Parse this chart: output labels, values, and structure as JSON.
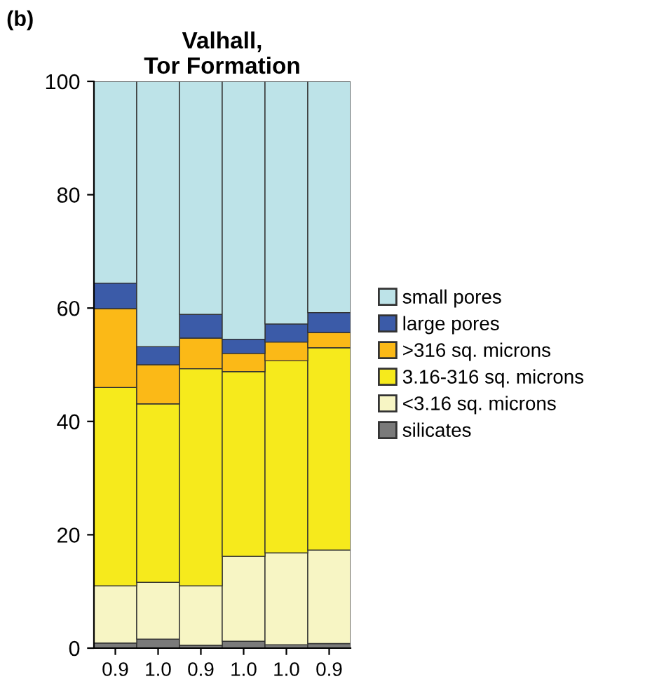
{
  "chart_data": {
    "type": "bar",
    "title": "Valhall,\nTor Formation",
    "annotations": [
      "(b)"
    ],
    "categories": [
      "0.9",
      "1.0",
      "0.9",
      "1.0",
      "1.0",
      "0.9"
    ],
    "stacked": true,
    "series": [
      {
        "name": "silicates",
        "color": "#7a7a7a",
        "values": [
          0.9,
          1.6,
          0.5,
          1.2,
          0.6,
          0.8
        ]
      },
      {
        "name": "<3.16 sq. microns",
        "color": "#f7f5c4",
        "values": [
          10.1,
          10.0,
          10.5,
          15.0,
          16.2,
          16.5
        ]
      },
      {
        "name": "3.16-316 sq. microns",
        "color": "#f6ea1c",
        "values": [
          35.0,
          31.5,
          38.3,
          32.6,
          33.9,
          35.7
        ]
      },
      {
        "name": ">316 sq. microns",
        "color": "#fbb917",
        "values": [
          13.9,
          6.9,
          5.4,
          3.2,
          3.3,
          2.7
        ]
      },
      {
        "name": "large pores",
        "color": "#3b5ba8",
        "values": [
          4.5,
          3.2,
          4.2,
          2.5,
          3.2,
          3.5
        ]
      },
      {
        "name": "small pores",
        "color": "#bde3e8",
        "values": [
          35.6,
          46.8,
          41.1,
          45.5,
          42.8,
          40.8
        ]
      }
    ],
    "ylim": [
      0,
      100
    ],
    "yticks": [
      0,
      20,
      40,
      60,
      80,
      100
    ],
    "grid": false,
    "legend": "right"
  }
}
